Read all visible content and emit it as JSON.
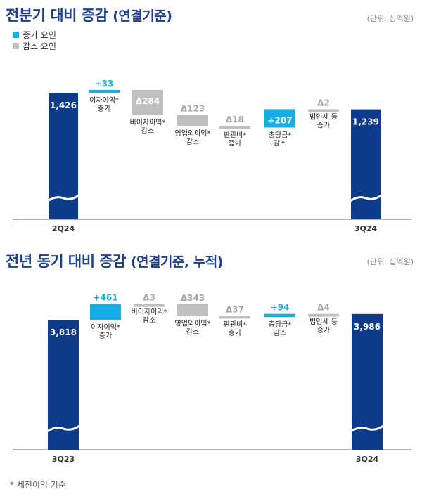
{
  "colors": {
    "increase": "#17aee8",
    "decrease": "#bfbfbf",
    "total": "#0e3a8c",
    "title": "#1d3f8c",
    "axis": "#9a9a9a"
  },
  "legend": [
    {
      "label": "증가 요인",
      "color": "#17aee8"
    },
    {
      "label": "감소 요인",
      "color": "#bfbfbf"
    }
  ],
  "footnote": "* 세전이익 기준",
  "chart_data": [
    {
      "type": "bar",
      "title": "전분기 대비 증감",
      "subtitle": "(연결기준)",
      "unit": "(단위: 십억원)",
      "ylim": [
        0,
        1500
      ],
      "items": [
        {
          "kind": "total",
          "value_label": "1,426",
          "value": 1426,
          "cat": [
            "2Q24"
          ]
        },
        {
          "kind": "increase",
          "value_label": "+33",
          "value": 33,
          "cat": [
            "이자이익*",
            "증가"
          ]
        },
        {
          "kind": "decrease",
          "value_label": "Δ284",
          "value": -284,
          "cat": [
            "비이자이익*",
            "감소"
          ]
        },
        {
          "kind": "decrease",
          "value_label": "Δ123",
          "value": -123,
          "cat": [
            "영업외이익*",
            "감소"
          ]
        },
        {
          "kind": "decrease",
          "value_label": "Δ18",
          "value": -18,
          "cat": [
            "판관비*",
            "증가"
          ]
        },
        {
          "kind": "increase",
          "value_label": "+207",
          "value": 207,
          "cat": [
            "충당금*",
            "감소"
          ]
        },
        {
          "kind": "decrease",
          "value_label": "Δ2",
          "value": -2,
          "cat": [
            "법인세 등",
            "증가"
          ]
        },
        {
          "kind": "total",
          "value_label": "1,239",
          "value": 1239,
          "cat": [
            "3Q24"
          ]
        }
      ]
    },
    {
      "type": "bar",
      "title": "전년 동기 대비 증감",
      "subtitle": "(연결기준, 누적)",
      "unit": "(단위: 십억원)",
      "ylim": [
        0,
        4600
      ],
      "items": [
        {
          "kind": "total",
          "value_label": "3,818",
          "value": 3818,
          "cat": [
            "3Q23"
          ]
        },
        {
          "kind": "increase",
          "value_label": "+461",
          "value": 461,
          "cat": [
            "이자이익*",
            "증가"
          ]
        },
        {
          "kind": "decrease",
          "value_label": "Δ3",
          "value": -3,
          "cat": [
            "비이자이익*",
            "감소"
          ]
        },
        {
          "kind": "decrease",
          "value_label": "Δ343",
          "value": -343,
          "cat": [
            "영업외이익*",
            "감소"
          ]
        },
        {
          "kind": "decrease",
          "value_label": "Δ37",
          "value": -37,
          "cat": [
            "판관비*",
            "증가"
          ]
        },
        {
          "kind": "increase",
          "value_label": "+94",
          "value": 94,
          "cat": [
            "충당금*",
            "감소"
          ]
        },
        {
          "kind": "decrease",
          "value_label": "Δ4",
          "value": -4,
          "cat": [
            "법인세 등",
            "증가"
          ]
        },
        {
          "kind": "total",
          "value_label": "3,986",
          "value": 3986,
          "cat": [
            "3Q24"
          ]
        }
      ]
    }
  ]
}
